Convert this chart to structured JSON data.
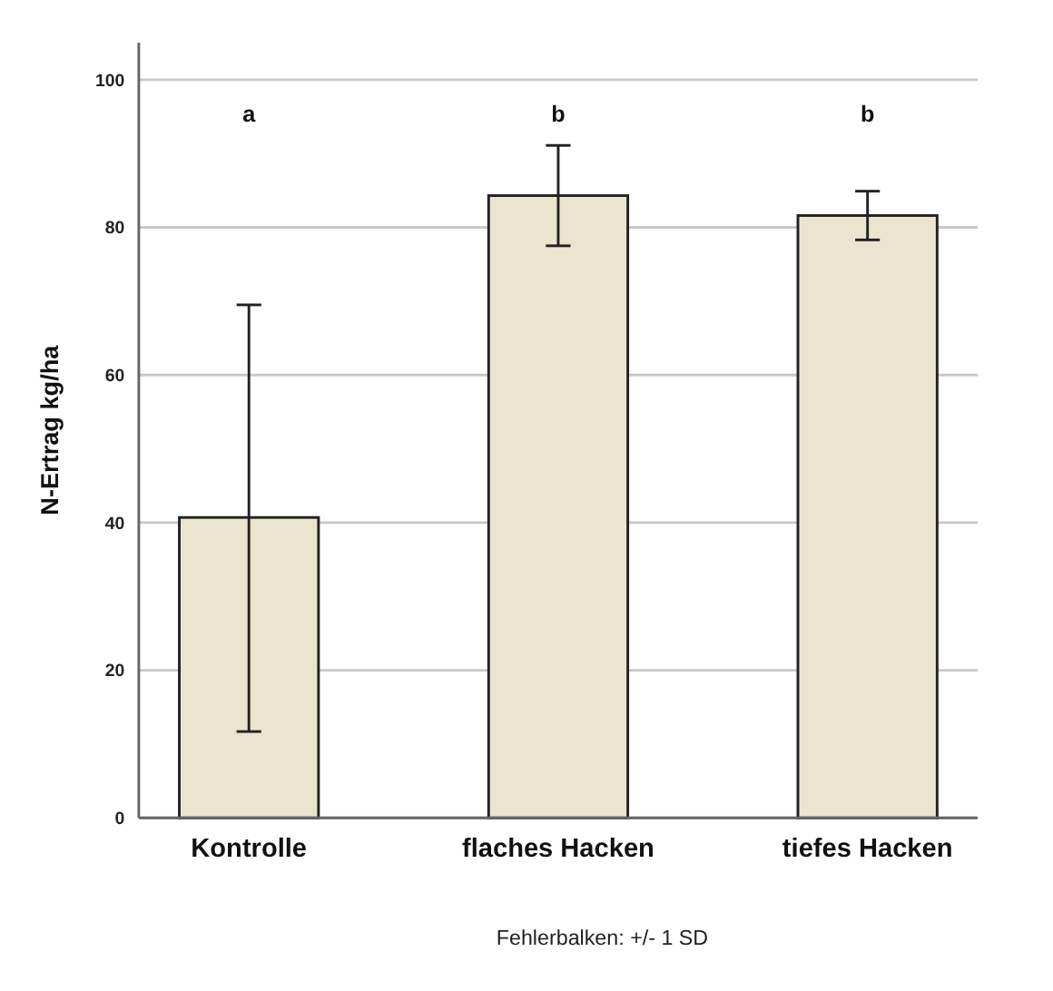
{
  "chart_data": {
    "type": "bar",
    "ylabel": "N-Ertrag kg/ha",
    "categories": [
      "Kontrolle",
      "flaches Hacken",
      "tiefes Hacken"
    ],
    "values": [
      40.7,
      84.3,
      81.6
    ],
    "color": "#ebe4cf",
    "errors": [
      [
        11.7,
        69.5
      ],
      [
        77.5,
        91.1
      ],
      [
        78.3,
        84.9
      ]
    ],
    "ylim": [
      0,
      100
    ],
    "yticks": [
      0,
      20,
      40,
      60,
      80,
      100
    ],
    "grid": "y",
    "annotations": [
      "a",
      "b",
      "b",
      "Fehlerbalken: +/- 1 SD"
    ]
  }
}
